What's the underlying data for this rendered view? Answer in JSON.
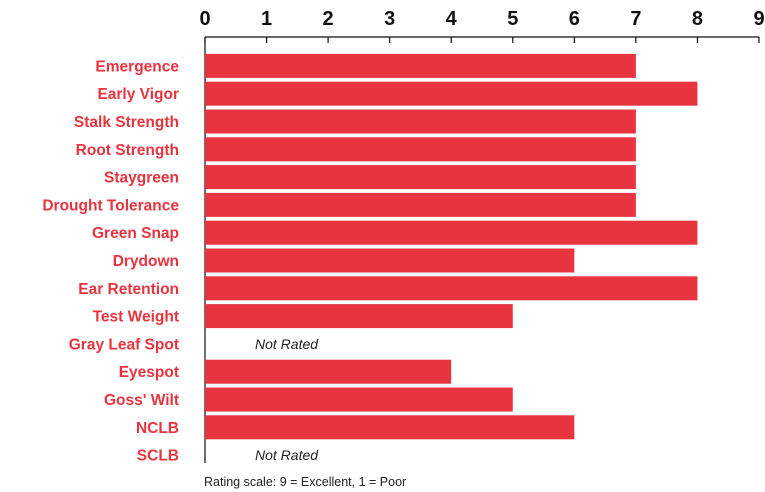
{
  "chart_data": {
    "type": "bar",
    "orientation": "horizontal",
    "x_ticks": [
      "0",
      "1",
      "2",
      "3",
      "4",
      "5",
      "6",
      "7",
      "8",
      "9"
    ],
    "xlim": [
      0,
      9
    ],
    "axis_position": "top",
    "grid": false,
    "categories": [
      "Emergence",
      "Early Vigor",
      "Stalk Strength",
      "Root Strength",
      "Staygreen",
      "Drought Tolerance",
      "Green Snap",
      "Drydown",
      "Ear Retention",
      "Test Weight",
      "Gray Leaf Spot",
      "Eyespot",
      "Goss' Wilt",
      "NCLB",
      "SCLB"
    ],
    "values": [
      7,
      8,
      7,
      7,
      7,
      7,
      8,
      6,
      8,
      5,
      null,
      4,
      5,
      6,
      null
    ],
    "not_rated_label": "Not Rated",
    "bar_color": "#e8343f",
    "label_color": "#e8343f",
    "footnote": "Rating scale: 9 = Excellent, 1 = Poor"
  }
}
